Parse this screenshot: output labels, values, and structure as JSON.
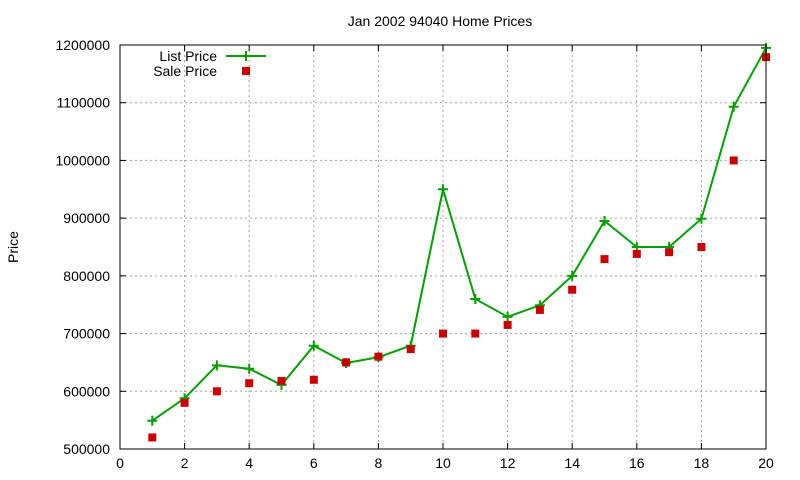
{
  "chart_data": {
    "type": "line",
    "title": "Jan 2002 94040 Home Prices",
    "xlabel": "",
    "ylabel": "Price",
    "xlim": [
      0,
      20
    ],
    "ylim": [
      500000,
      1200000
    ],
    "xticks": [
      0,
      2,
      4,
      6,
      8,
      10,
      12,
      14,
      16,
      18,
      20
    ],
    "yticks": [
      500000,
      600000,
      700000,
      800000,
      900000,
      1000000,
      1100000,
      1200000
    ],
    "grid": true,
    "legend_position": "top-left",
    "x": [
      1,
      2,
      3,
      4,
      5,
      6,
      7,
      8,
      9,
      10,
      11,
      12,
      13,
      14,
      15,
      16,
      17,
      18,
      19,
      20
    ],
    "series": [
      {
        "name": "List Price",
        "style": "linespoints",
        "marker": "plus",
        "color": "#00a000",
        "values": [
          549000,
          588000,
          645000,
          639000,
          611000,
          679000,
          649000,
          659000,
          679000,
          950000,
          760000,
          729000,
          749000,
          800000,
          895000,
          850000,
          850000,
          899000,
          1093000,
          1195000
        ]
      },
      {
        "name": "Sale Price",
        "style": "points",
        "marker": "square",
        "color": "#cc0000",
        "values": [
          520000,
          580000,
          600000,
          614000,
          618000,
          620000,
          650000,
          660000,
          673000,
          700000,
          700000,
          715000,
          741000,
          776000,
          829000,
          838000,
          841000,
          850000,
          1000000,
          1179000
        ]
      }
    ]
  }
}
